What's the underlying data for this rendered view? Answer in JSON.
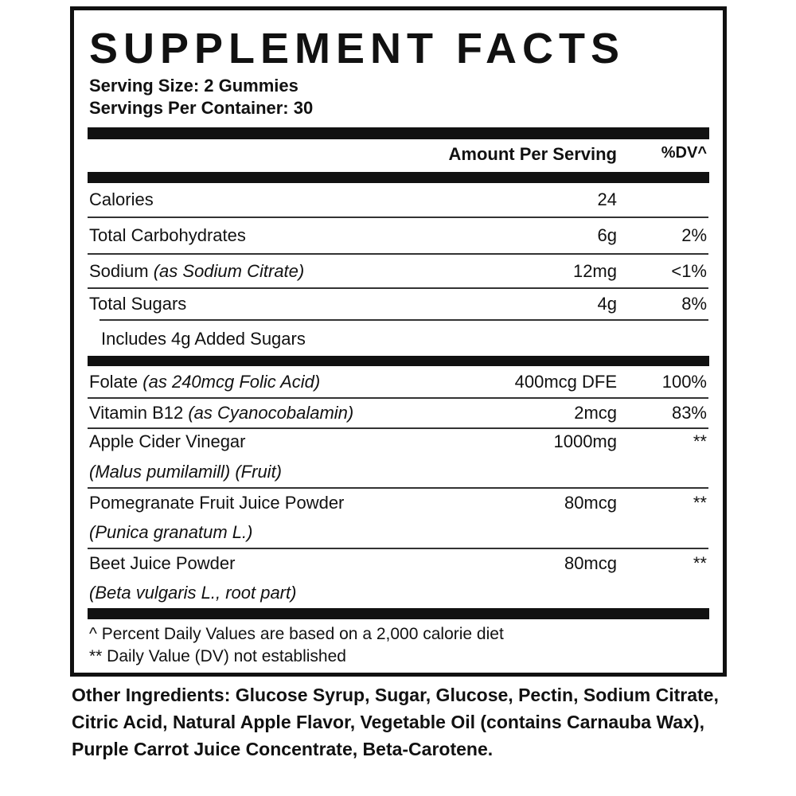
{
  "title": "SUPPLEMENT FACTS",
  "serving_size": "Serving Size: 2 Gummies",
  "servings_per_container": "Servings Per Container: 30",
  "header": {
    "amount": "Amount Per Serving",
    "dv": "%DV^"
  },
  "rows": [
    {
      "name": "Calories",
      "sub": "",
      "amount": "24",
      "dv": ""
    },
    {
      "name": "Total Carbohydrates",
      "sub": "",
      "amount": "6g",
      "dv": "2%"
    },
    {
      "name": "Sodium",
      "sub": "(as Sodium Citrate)",
      "amount": "12mg",
      "dv": "<1%"
    },
    {
      "name": "Total Sugars",
      "sub": "",
      "amount": "4g",
      "dv": "8%"
    },
    {
      "name": "Includes 4g Added Sugars",
      "sub": "",
      "amount": "",
      "dv": ""
    },
    {
      "name": "Folate",
      "sub": "(as 240mcg Folic Acid)",
      "amount": "400mcg DFE",
      "dv": "100%"
    },
    {
      "name": "Vitamin B12",
      "sub": "(as Cyanocobalamin)",
      "amount": "2mcg",
      "dv": "83%"
    },
    {
      "name": "Apple Cider Vinegar",
      "sub": "(Malus pumilamill) (Fruit)",
      "amount": "1000mg",
      "dv": "**"
    },
    {
      "name": "Pomegranate Fruit Juice Powder",
      "sub": "(Punica granatum L.)",
      "amount": "80mcg",
      "dv": "**"
    },
    {
      "name": "Beet Juice Powder",
      "sub": "(Beta vulgaris L., root part)",
      "amount": "80mcg",
      "dv": "**"
    }
  ],
  "footnotes": [
    "^ Percent Daily Values are based on a 2,000 calorie diet",
    "** Daily Value (DV) not established"
  ],
  "other_ingredients": {
    "label": "Other Ingredients:",
    "text": " Glucose Syrup, Sugar, Glucose, Pectin, Sodium Citrate, Citric Acid, Natural Apple Flavor, Vegetable Oil (contains Carnauba Wax), Purple Carrot Juice Concentrate, Beta-Carotene."
  }
}
